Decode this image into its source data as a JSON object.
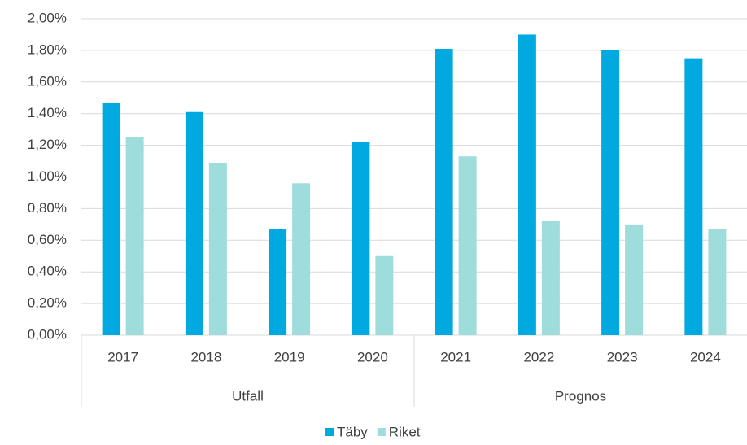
{
  "chart_data": {
    "type": "bar",
    "categories": [
      "2017",
      "2018",
      "2019",
      "2020",
      "2021",
      "2022",
      "2023",
      "2024"
    ],
    "groups": [
      {
        "label": "Utfall",
        "count": 4
      },
      {
        "label": "Prognos",
        "count": 4
      }
    ],
    "series": [
      {
        "name": "Täby",
        "color": "#00a9e0",
        "values": [
          1.47,
          1.41,
          0.67,
          1.22,
          1.81,
          1.9,
          1.8,
          1.75
        ]
      },
      {
        "name": "Riket",
        "color": "#9fdcdc",
        "values": [
          1.25,
          1.09,
          0.96,
          0.5,
          1.13,
          0.72,
          0.7,
          0.67
        ]
      }
    ],
    "ylim": [
      0,
      2
    ],
    "yticks": [
      {
        "value": 0,
        "label": "0,00%"
      },
      {
        "value": 0.2,
        "label": "0,20%"
      },
      {
        "value": 0.4,
        "label": "0,40%"
      },
      {
        "value": 0.6,
        "label": "0,60%"
      },
      {
        "value": 0.8,
        "label": "0,80%"
      },
      {
        "value": 1.0,
        "label": "1,00%"
      },
      {
        "value": 1.2,
        "label": "1,20%"
      },
      {
        "value": 1.4,
        "label": "1,40%"
      },
      {
        "value": 1.6,
        "label": "1,60%"
      },
      {
        "value": 1.8,
        "label": "1,80%"
      },
      {
        "value": 2.0,
        "label": "2,00%"
      }
    ],
    "grid": true,
    "legend": "bottom"
  }
}
